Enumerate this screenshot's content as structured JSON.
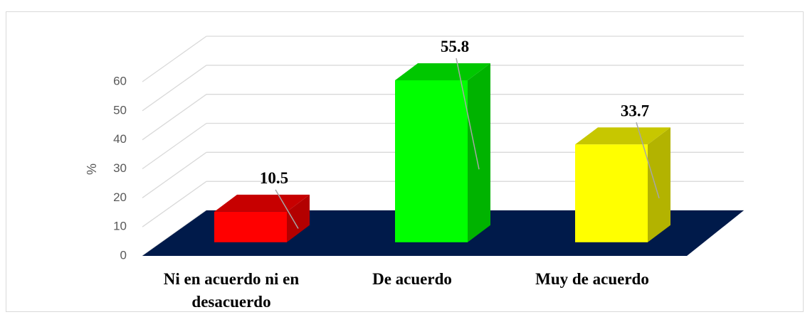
{
  "chart_data": {
    "type": "bar",
    "categories": [
      "Ni en acuerdo ni en desacuerdo",
      "De acuerdo",
      "Muy de acuerdo"
    ],
    "values": [
      10.5,
      55.8,
      33.7
    ],
    "colors": [
      "#ff0000",
      "#00ff00",
      "#ffff00"
    ],
    "ylabel": "%",
    "ylim": [
      0,
      60
    ],
    "yticks": [
      0,
      10,
      20,
      30,
      40,
      50,
      60
    ],
    "grid": true,
    "floor_color": "#001a4a"
  }
}
